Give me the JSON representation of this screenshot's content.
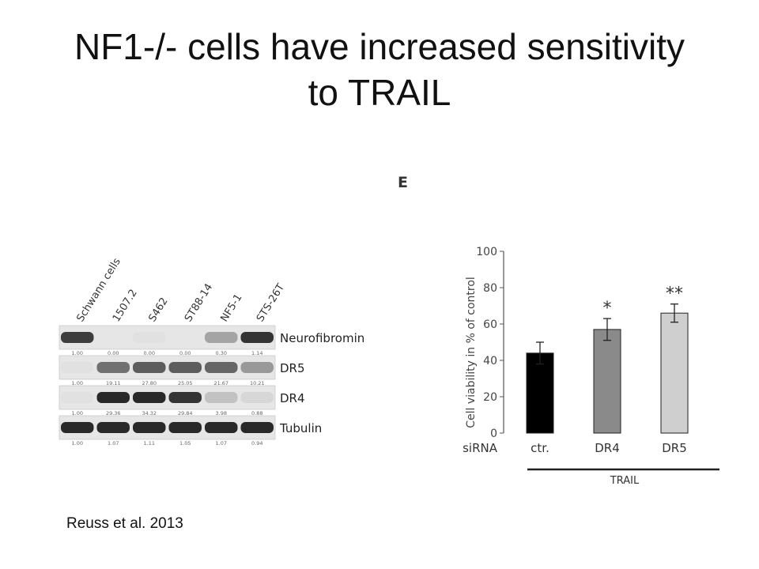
{
  "slide": {
    "title_line1": "NF1-/- cells have increased sensitivity",
    "title_line2": "to TRAIL",
    "panel_letter": "E",
    "citation": "Reuss et al. 2013"
  },
  "blot": {
    "lanes": [
      "Schwann cells",
      "1507.2",
      "S462",
      "ST88-14",
      "NF5-1",
      "STS-26T"
    ],
    "rows": [
      {
        "name": "Neurofibromin",
        "values": [
          "1.00",
          "0.00",
          "0.00",
          "0.00",
          "0.30",
          "1.14"
        ],
        "intensity": [
          0.85,
          0.0,
          0.05,
          0.0,
          0.35,
          0.9
        ]
      },
      {
        "name": "DR5",
        "values": [
          "1.00",
          "19.11",
          "27.80",
          "25.05",
          "21.67",
          "10.21"
        ],
        "intensity": [
          0.05,
          0.6,
          0.7,
          0.7,
          0.65,
          0.4
        ]
      },
      {
        "name": "DR4",
        "values": [
          "1.00",
          "29.36",
          "34.32",
          "29.84",
          "3.98",
          "0.88"
        ],
        "intensity": [
          0.05,
          0.95,
          0.95,
          0.9,
          0.2,
          0.1
        ]
      },
      {
        "name": "Tubulin",
        "values": [
          "1.00",
          "1.07",
          "1.11",
          "1.05",
          "1.07",
          "0.94"
        ],
        "intensity": [
          0.95,
          0.95,
          0.95,
          0.95,
          0.95,
          0.95
        ]
      }
    ]
  },
  "chart_data": {
    "type": "bar",
    "categories": [
      "ctr.",
      "DR4",
      "DR5"
    ],
    "values": [
      44,
      57,
      66
    ],
    "errors": [
      6,
      6,
      5
    ],
    "significance": [
      "",
      "*",
      "**"
    ],
    "bar_colors": [
      "#000000",
      "#8a8a8a",
      "#cfcfcf"
    ],
    "ylabel": "Cell viability in % of control",
    "ylim": [
      0,
      100
    ],
    "yticks": [
      0,
      20,
      40,
      60,
      80,
      100
    ],
    "row_label": "siRNA",
    "group_label": "TRAIL",
    "grid": false
  }
}
